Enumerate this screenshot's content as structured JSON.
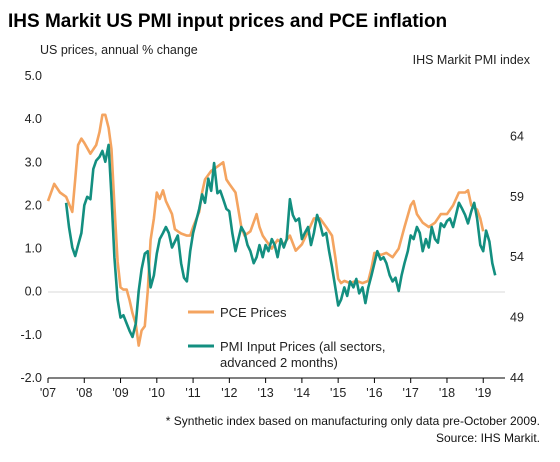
{
  "chart_data": {
    "type": "line",
    "title": "IHS Markit US PMI input prices and PCE inflation",
    "ylabel_left": "US prices, annual % change",
    "ylabel_right": "IHS Markit PMI index",
    "left_ylim": [
      -2.0,
      5.0
    ],
    "left_ticks": [
      "5.0",
      "4.0",
      "3.0",
      "2.0",
      "1.0",
      "0.0",
      "-1.0",
      "-2.0"
    ],
    "right_ylim": [
      44,
      69
    ],
    "right_ticks": [
      "64",
      "59",
      "54",
      "49",
      "44"
    ],
    "x_ticks": [
      "'07",
      "'08",
      "'09",
      "'10",
      "'11",
      "'12",
      "'13",
      "'14",
      "'15",
      "'16",
      "'17",
      "'18",
      "'19"
    ],
    "legend_position": "bottom-center",
    "series": [
      {
        "name": "PCE Prices",
        "axis": "left",
        "color": "#F4A460",
        "points": [
          [
            2007.0,
            2.1
          ],
          [
            2007.17,
            2.5
          ],
          [
            2007.33,
            2.3
          ],
          [
            2007.5,
            2.2
          ],
          [
            2007.67,
            1.85
          ],
          [
            2007.75,
            2.6
          ],
          [
            2007.83,
            3.4
          ],
          [
            2007.92,
            3.55
          ],
          [
            2008.0,
            3.45
          ],
          [
            2008.17,
            3.2
          ],
          [
            2008.33,
            3.4
          ],
          [
            2008.42,
            3.7
          ],
          [
            2008.5,
            4.1
          ],
          [
            2008.58,
            4.1
          ],
          [
            2008.67,
            3.8
          ],
          [
            2008.75,
            3.3
          ],
          [
            2008.83,
            2.0
          ],
          [
            2008.92,
            0.7
          ],
          [
            2009.0,
            0.1
          ],
          [
            2009.08,
            0.05
          ],
          [
            2009.17,
            0.05
          ],
          [
            2009.25,
            -0.2
          ],
          [
            2009.33,
            -0.5
          ],
          [
            2009.42,
            -0.75
          ],
          [
            2009.5,
            -1.25
          ],
          [
            2009.58,
            -0.9
          ],
          [
            2009.67,
            -0.8
          ],
          [
            2009.75,
            0.0
          ],
          [
            2009.83,
            1.2
          ],
          [
            2009.92,
            1.7
          ],
          [
            2010.0,
            2.3
          ],
          [
            2010.08,
            2.15
          ],
          [
            2010.17,
            2.35
          ],
          [
            2010.25,
            2.1
          ],
          [
            2010.42,
            1.8
          ],
          [
            2010.5,
            1.45
          ],
          [
            2010.58,
            1.4
          ],
          [
            2010.67,
            1.35
          ],
          [
            2010.83,
            1.3
          ],
          [
            2010.92,
            1.3
          ],
          [
            2011.0,
            1.5
          ],
          [
            2011.17,
            1.85
          ],
          [
            2011.25,
            2.3
          ],
          [
            2011.33,
            2.6
          ],
          [
            2011.5,
            2.8
          ],
          [
            2011.67,
            2.9
          ],
          [
            2011.83,
            3.0
          ],
          [
            2011.92,
            2.6
          ],
          [
            2012.0,
            2.5
          ],
          [
            2012.17,
            2.3
          ],
          [
            2012.33,
            1.5
          ],
          [
            2012.42,
            1.3
          ],
          [
            2012.58,
            1.4
          ],
          [
            2012.75,
            1.8
          ],
          [
            2012.83,
            1.5
          ],
          [
            2012.92,
            1.3
          ],
          [
            2013.0,
            1.2
          ],
          [
            2013.17,
            1.0
          ],
          [
            2013.33,
            1.2
          ],
          [
            2013.5,
            1.1
          ],
          [
            2013.67,
            1.3
          ],
          [
            2013.83,
            0.95
          ],
          [
            2014.0,
            1.1
          ],
          [
            2014.17,
            1.4
          ],
          [
            2014.33,
            1.7
          ],
          [
            2014.5,
            1.7
          ],
          [
            2014.67,
            1.5
          ],
          [
            2014.83,
            1.3
          ],
          [
            2014.92,
            0.8
          ],
          [
            2015.0,
            0.3
          ],
          [
            2015.08,
            0.2
          ],
          [
            2015.17,
            0.25
          ],
          [
            2015.33,
            0.2
          ],
          [
            2015.5,
            0.25
          ],
          [
            2015.67,
            0.2
          ],
          [
            2015.83,
            0.25
          ],
          [
            2015.92,
            0.55
          ],
          [
            2016.0,
            0.9
          ],
          [
            2016.08,
            0.9
          ],
          [
            2016.17,
            0.85
          ],
          [
            2016.33,
            0.9
          ],
          [
            2016.5,
            0.8
          ],
          [
            2016.67,
            1.0
          ],
          [
            2016.83,
            1.5
          ],
          [
            2017.0,
            2.0
          ],
          [
            2017.08,
            2.1
          ],
          [
            2017.17,
            1.8
          ],
          [
            2017.33,
            1.6
          ],
          [
            2017.5,
            1.5
          ],
          [
            2017.67,
            1.6
          ],
          [
            2017.83,
            1.8
          ],
          [
            2018.0,
            1.8
          ],
          [
            2018.17,
            2.0
          ],
          [
            2018.33,
            2.3
          ],
          [
            2018.5,
            2.3
          ],
          [
            2018.58,
            2.35
          ],
          [
            2018.67,
            2.0
          ],
          [
            2018.83,
            1.9
          ],
          [
            2018.92,
            1.7
          ],
          [
            2019.0,
            1.4
          ]
        ]
      },
      {
        "name": "PMI Input Prices (all sectors, advanced 2 months)",
        "axis": "right",
        "color": "#138F80",
        "points": [
          [
            2007.5,
            58.5
          ],
          [
            2007.58,
            56.5
          ],
          [
            2007.67,
            54.8
          ],
          [
            2007.75,
            54.1
          ],
          [
            2007.83,
            55.0
          ],
          [
            2007.92,
            56.0
          ],
          [
            2008.0,
            58.3
          ],
          [
            2008.08,
            59.0
          ],
          [
            2008.17,
            58.8
          ],
          [
            2008.25,
            61.3
          ],
          [
            2008.33,
            62.0
          ],
          [
            2008.42,
            62.3
          ],
          [
            2008.5,
            62.8
          ],
          [
            2008.58,
            61.9
          ],
          [
            2008.67,
            63.3
          ],
          [
            2008.75,
            59.0
          ],
          [
            2008.83,
            54.0
          ],
          [
            2008.92,
            50.5
          ],
          [
            2009.0,
            49.0
          ],
          [
            2009.08,
            49.2
          ],
          [
            2009.17,
            48.5
          ],
          [
            2009.25,
            47.9
          ],
          [
            2009.33,
            47.4
          ],
          [
            2009.42,
            48.5
          ],
          [
            2009.5,
            51.2
          ],
          [
            2009.58,
            53.0
          ],
          [
            2009.67,
            54.3
          ],
          [
            2009.75,
            54.5
          ],
          [
            2009.83,
            51.5
          ],
          [
            2009.92,
            52.5
          ],
          [
            2010.0,
            54.3
          ],
          [
            2010.08,
            55.5
          ],
          [
            2010.17,
            56.0
          ],
          [
            2010.25,
            56.5
          ],
          [
            2010.33,
            56.0
          ],
          [
            2010.42,
            54.8
          ],
          [
            2010.5,
            55.3
          ],
          [
            2010.58,
            55.8
          ],
          [
            2010.67,
            53.5
          ],
          [
            2010.75,
            52.3
          ],
          [
            2010.83,
            52.0
          ],
          [
            2010.92,
            54.5
          ],
          [
            2011.0,
            56.0
          ],
          [
            2011.17,
            58.0
          ],
          [
            2011.25,
            59.2
          ],
          [
            2011.33,
            58.5
          ],
          [
            2011.42,
            60.5
          ],
          [
            2011.5,
            59.5
          ],
          [
            2011.58,
            61.8
          ],
          [
            2011.67,
            59.3
          ],
          [
            2011.75,
            59.5
          ],
          [
            2011.83,
            58.8
          ],
          [
            2011.92,
            58.0
          ],
          [
            2012.0,
            57.8
          ],
          [
            2012.08,
            56.0
          ],
          [
            2012.17,
            54.5
          ],
          [
            2012.25,
            55.5
          ],
          [
            2012.33,
            56.5
          ],
          [
            2012.42,
            56.0
          ],
          [
            2012.5,
            55.0
          ],
          [
            2012.58,
            54.5
          ],
          [
            2012.67,
            53.5
          ],
          [
            2012.75,
            54.0
          ],
          [
            2012.83,
            55.0
          ],
          [
            2012.92,
            54.0
          ],
          [
            2013.0,
            55.0
          ],
          [
            2013.08,
            54.5
          ],
          [
            2013.17,
            55.5
          ],
          [
            2013.25,
            55.0
          ],
          [
            2013.33,
            54.0
          ],
          [
            2013.42,
            55.5
          ],
          [
            2013.5,
            54.8
          ],
          [
            2013.58,
            55.5
          ],
          [
            2013.67,
            58.8
          ],
          [
            2013.75,
            57.5
          ],
          [
            2013.83,
            57.0
          ],
          [
            2013.92,
            57.2
          ],
          [
            2014.0,
            55.5
          ],
          [
            2014.08,
            56.0
          ],
          [
            2014.17,
            56.5
          ],
          [
            2014.25,
            55.0
          ],
          [
            2014.33,
            56.0
          ],
          [
            2014.42,
            57.5
          ],
          [
            2014.5,
            56.8
          ],
          [
            2014.58,
            55.8
          ],
          [
            2014.67,
            56.0
          ],
          [
            2014.75,
            54.5
          ],
          [
            2014.83,
            53.2
          ],
          [
            2014.92,
            51.5
          ],
          [
            2015.0,
            50.0
          ],
          [
            2015.08,
            50.5
          ],
          [
            2015.17,
            51.5
          ],
          [
            2015.25,
            50.8
          ],
          [
            2015.33,
            52.0
          ],
          [
            2015.42,
            51.5
          ],
          [
            2015.5,
            52.2
          ],
          [
            2015.58,
            51.0
          ],
          [
            2015.67,
            51.5
          ],
          [
            2015.75,
            50.2
          ],
          [
            2015.83,
            51.5
          ],
          [
            2015.92,
            52.5
          ],
          [
            2016.0,
            53.5
          ],
          [
            2016.08,
            54.5
          ],
          [
            2016.17,
            53.8
          ],
          [
            2016.25,
            54.0
          ],
          [
            2016.33,
            53.5
          ],
          [
            2016.42,
            52.5
          ],
          [
            2016.5,
            52.0
          ],
          [
            2016.58,
            52.3
          ],
          [
            2016.67,
            51.2
          ],
          [
            2016.75,
            52.5
          ],
          [
            2016.83,
            53.5
          ],
          [
            2016.92,
            54.5
          ],
          [
            2017.0,
            55.8
          ],
          [
            2017.08,
            55.5
          ],
          [
            2017.17,
            56.5
          ],
          [
            2017.25,
            56.0
          ],
          [
            2017.33,
            54.5
          ],
          [
            2017.42,
            55.5
          ],
          [
            2017.5,
            54.8
          ],
          [
            2017.58,
            56.5
          ],
          [
            2017.67,
            55.5
          ],
          [
            2017.75,
            55.2
          ],
          [
            2017.83,
            56.8
          ],
          [
            2017.92,
            56.5
          ],
          [
            2018.0,
            57.0
          ],
          [
            2018.08,
            57.2
          ],
          [
            2018.17,
            56.5
          ],
          [
            2018.25,
            57.5
          ],
          [
            2018.33,
            58.5
          ],
          [
            2018.42,
            58.0
          ],
          [
            2018.5,
            57.5
          ],
          [
            2018.58,
            56.8
          ],
          [
            2018.67,
            57.8
          ],
          [
            2018.75,
            58.5
          ],
          [
            2018.83,
            57.2
          ],
          [
            2018.92,
            55.0
          ],
          [
            2019.0,
            54.5
          ],
          [
            2019.08,
            56.2
          ],
          [
            2019.17,
            55.3
          ],
          [
            2019.25,
            53.5
          ],
          [
            2019.33,
            52.5
          ]
        ]
      }
    ],
    "notes": [
      "* Synthetic index based on manufacturing only data pre-October 2009.",
      "Source: IHS Markit."
    ]
  }
}
